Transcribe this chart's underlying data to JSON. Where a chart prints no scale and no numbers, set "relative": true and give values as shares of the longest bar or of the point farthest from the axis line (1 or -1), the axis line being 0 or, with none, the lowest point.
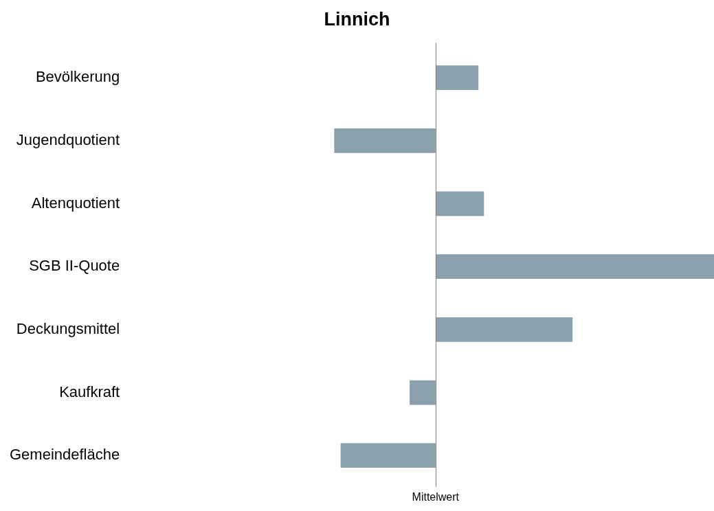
{
  "chart_data": {
    "type": "bar",
    "orientation": "horizontal",
    "relative": true,
    "title": "Linnich",
    "categories": [
      "Bevölkerung",
      "Jugendquotient",
      "Altenquotient",
      "SGB II-Quote",
      "Deckungsmittel",
      "Kaufkraft",
      "Gemeindefläche"
    ],
    "values": [
      0.154,
      -0.364,
      0.174,
      1,
      0.492,
      -0.093,
      -0.341
    ],
    "color": "#8aa0ac",
    "annotations": [
      "Mittelwert"
    ],
    "grid": false,
    "legend": false
  }
}
